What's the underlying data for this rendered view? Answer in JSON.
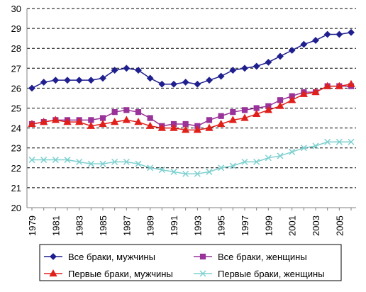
{
  "chart_data": {
    "type": "line",
    "title": "",
    "xlabel": "",
    "ylabel": "",
    "grid": true,
    "legend_position": "bottom",
    "x": [
      1979,
      1980,
      1981,
      1982,
      1983,
      1984,
      1985,
      1986,
      1987,
      1988,
      1989,
      1990,
      1991,
      1992,
      1993,
      1994,
      1995,
      1996,
      1997,
      1998,
      1999,
      2000,
      2001,
      2002,
      2003,
      2004,
      2005,
      2006
    ],
    "x_tick_labels": [
      "1979",
      "1981",
      "1983",
      "1985",
      "1987",
      "1989",
      "1991",
      "1993",
      "1995",
      "1997",
      "1999",
      "2001",
      "2003",
      "2005"
    ],
    "ylim": [
      20,
      30
    ],
    "y_tick_labels": [
      "20",
      "21",
      "22",
      "23",
      "24",
      "25",
      "26",
      "27",
      "28",
      "29",
      "30"
    ],
    "series": [
      {
        "name": "Все браки, мужчины",
        "color": "#1f1f8f",
        "marker": "diamond",
        "values": [
          26.0,
          26.3,
          26.4,
          26.4,
          26.4,
          26.4,
          26.5,
          26.9,
          27.0,
          26.9,
          26.5,
          26.2,
          26.2,
          26.3,
          26.2,
          26.4,
          26.6,
          26.9,
          27.0,
          27.1,
          27.3,
          27.6,
          27.9,
          28.2,
          28.4,
          28.7,
          28.7,
          28.8
        ]
      },
      {
        "name": "Все браки, женщины",
        "color": "#993399",
        "marker": "square",
        "values": [
          24.2,
          24.3,
          24.4,
          24.4,
          24.4,
          24.4,
          24.5,
          24.8,
          24.9,
          24.8,
          24.5,
          24.1,
          24.2,
          24.2,
          24.1,
          24.4,
          24.6,
          24.8,
          24.9,
          25.0,
          25.1,
          25.4,
          25.6,
          25.8,
          25.8,
          26.1,
          26.1,
          26.1
        ]
      },
      {
        "name": "Первые браки, мужчины",
        "color": "#e0201b",
        "marker": "triangle",
        "values": [
          24.2,
          24.3,
          24.4,
          24.3,
          24.3,
          24.1,
          24.2,
          24.3,
          24.4,
          24.3,
          24.1,
          24.0,
          24.0,
          23.9,
          23.9,
          24.0,
          24.2,
          24.4,
          24.5,
          24.7,
          24.9,
          25.1,
          25.4,
          25.7,
          25.8,
          26.1,
          26.1,
          26.2
        ]
      },
      {
        "name": "Первые браки, женщины",
        "color": "#7fd0d0",
        "marker": "x",
        "values": [
          22.4,
          22.4,
          22.4,
          22.4,
          22.3,
          22.2,
          22.2,
          22.3,
          22.3,
          22.2,
          22.0,
          21.9,
          21.8,
          21.7,
          21.7,
          21.8,
          22.0,
          22.1,
          22.3,
          22.3,
          22.5,
          22.6,
          22.8,
          23.0,
          23.1,
          23.3,
          23.3,
          23.3
        ]
      }
    ]
  }
}
